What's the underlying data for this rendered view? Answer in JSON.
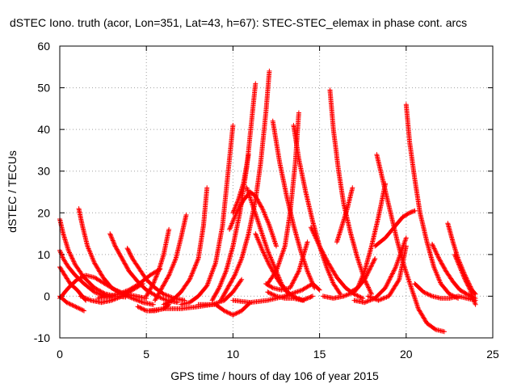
{
  "chart_data": {
    "type": "scatter",
    "title": "dSTEC Iono. truth (acor, Lon=351, Lat=43, h=67): STEC-STEC_elemax in phase cont. arcs",
    "xlabel": "GPS time / hours of day 106 of year 2015",
    "ylabel": "dSTEC  / TECUs",
    "xlim": [
      0,
      25
    ],
    "ylim": [
      -10,
      60
    ],
    "x_ticks": [
      0,
      5,
      10,
      15,
      20,
      25
    ],
    "y_ticks": [
      -10,
      0,
      10,
      20,
      30,
      40,
      50,
      60
    ],
    "grid": true,
    "marker": "plus",
    "series_color": "#ff0000",
    "arcs": [
      {
        "x": [
          0.0,
          0.4,
          0.9,
          1.4
        ],
        "y": [
          0.0,
          -1.5,
          -2.5,
          -3.5
        ]
      },
      {
        "x": [
          0.0,
          0.3,
          0.6,
          1.0,
          1.3,
          1.5
        ],
        "y": [
          7,
          5,
          3,
          1.5,
          0,
          -1
        ]
      },
      {
        "x": [
          0.0,
          0.2,
          0.5,
          0.9,
          1.4,
          2.0,
          2.5,
          3.0
        ],
        "y": [
          11,
          9,
          7,
          5,
          3,
          1,
          0.2,
          -0.3
        ]
      },
      {
        "x": [
          0.0,
          0.2,
          0.5,
          0.9,
          1.4,
          2.0,
          2.6,
          3.2,
          3.8
        ],
        "y": [
          18.5,
          15,
          11,
          7.5,
          4.5,
          2,
          0.6,
          0,
          -0.2
        ]
      },
      {
        "x": [
          0.0,
          0.5,
          1.0,
          1.5,
          2.0,
          2.6,
          3.2,
          3.8,
          4.4,
          5.0
        ],
        "y": [
          -0.5,
          2,
          4,
          5,
          4.5,
          3,
          1.5,
          0.5,
          0,
          -0.5
        ]
      },
      {
        "x": [
          1.1,
          1.3,
          1.6,
          2.0,
          2.5,
          3.0,
          3.6,
          4.2,
          4.8,
          5.4
        ],
        "y": [
          21,
          17,
          12,
          8,
          4.5,
          2,
          0.5,
          -0.5,
          -1.5,
          -2
        ]
      },
      {
        "x": [
          1.2,
          1.8,
          2.4,
          3.0,
          3.6,
          4.2,
          4.8
        ],
        "y": [
          0,
          -1,
          -1.5,
          -1,
          0,
          1.5,
          3
        ]
      },
      {
        "x": [
          2.9,
          3.2,
          3.6,
          4.0,
          4.5,
          5.0,
          5.6,
          6.2,
          6.8
        ],
        "y": [
          15,
          12,
          9,
          6,
          3.5,
          1.5,
          0,
          -1,
          -1.5
        ]
      },
      {
        "x": [
          3.9,
          4.2,
          4.6,
          5.0,
          5.5,
          6.0,
          6.6,
          7.2
        ],
        "y": [
          11.5,
          9,
          6.5,
          4,
          2,
          0.5,
          -0.5,
          -1
        ]
      },
      {
        "x": [
          2.2,
          2.8,
          3.4,
          4.0,
          4.6,
          5.2,
          5.8
        ],
        "y": [
          -0.5,
          0,
          0.5,
          1.5,
          3,
          5,
          6.5
        ]
      },
      {
        "x": [
          4.5,
          5.0,
          5.5,
          6.0,
          6.3
        ],
        "y": [
          -2.5,
          -3.5,
          -3.5,
          -3,
          -2
        ]
      },
      {
        "x": [
          5.0,
          5.4,
          5.7,
          6.0,
          6.3
        ],
        "y": [
          0,
          3,
          6,
          10,
          16
        ]
      },
      {
        "x": [
          5.5,
          5.9,
          6.3,
          6.7,
          7.0,
          7.3
        ],
        "y": [
          -1,
          2,
          5,
          9,
          14,
          19.5
        ]
      },
      {
        "x": [
          6.0,
          6.5,
          7.0,
          7.5,
          8.0,
          8.3,
          8.5
        ],
        "y": [
          -2,
          -1,
          1,
          4,
          9,
          17,
          26
        ]
      },
      {
        "x": [
          7.0,
          7.5,
          8.0,
          8.5,
          9.0,
          9.4,
          9.7,
          10.0
        ],
        "y": [
          -2,
          -1.5,
          0,
          2.5,
          8,
          17,
          29,
          41
        ]
      },
      {
        "x": [
          5.2,
          6.0,
          7.0,
          8.0,
          8.8,
          9.5,
          10.0,
          10.5
        ],
        "y": [
          -3.5,
          -3,
          -3,
          -2.5,
          -2,
          -1,
          1,
          4
        ]
      },
      {
        "x": [
          8.0,
          8.5,
          9.0,
          9.5,
          10.0,
          10.5,
          11.0
        ],
        "y": [
          -2,
          -2,
          -2,
          -3.5,
          -4.5,
          -3.5,
          -1.5
        ]
      },
      {
        "x": [
          8.8,
          9.2,
          9.6,
          10.0,
          10.4,
          10.8,
          11.1,
          11.3
        ],
        "y": [
          -1,
          2,
          6,
          12,
          20,
          31,
          43,
          51
        ]
      },
      {
        "x": [
          9.3,
          9.7,
          10.1,
          10.5,
          10.9,
          11.3,
          11.6,
          11.9,
          12.1
        ],
        "y": [
          -1,
          2,
          5,
          9,
          15,
          23,
          32,
          44,
          54
        ]
      },
      {
        "x": [
          9.8,
          10.2,
          10.6,
          11.0,
          11.3,
          11.7,
          12.1,
          12.5
        ],
        "y": [
          16,
          20,
          23,
          25,
          24,
          21,
          17,
          12
        ]
      },
      {
        "x": [
          10.0,
          10.3,
          10.6,
          10.9
        ],
        "y": [
          20,
          23,
          27,
          34
        ]
      },
      {
        "x": [
          10.8,
          11.2,
          11.6,
          12.0,
          12.4,
          12.8,
          13.2
        ],
        "y": [
          26,
          21,
          16,
          11,
          7,
          3,
          0.5
        ]
      },
      {
        "x": [
          11.3,
          11.7,
          12.1,
          12.5,
          12.9,
          13.3,
          13.7,
          14.1
        ],
        "y": [
          15,
          11,
          7.5,
          4.5,
          2,
          0.5,
          -0.5,
          -1
        ]
      },
      {
        "x": [
          10.0,
          11.0,
          12.0,
          13.0,
          14.0,
          14.6,
          15.0
        ],
        "y": [
          -1,
          -1.5,
          -1,
          0,
          1.5,
          3,
          1.5
        ]
      },
      {
        "x": [
          11.9,
          12.3,
          12.8,
          13.3,
          13.8,
          14.3
        ],
        "y": [
          3,
          2,
          1.5,
          2,
          6,
          13
        ]
      },
      {
        "x": [
          12.3,
          12.7,
          13.1,
          13.5,
          13.9,
          14.3,
          14.7
        ],
        "y": [
          42,
          32,
          24,
          17,
          11,
          6,
          2
        ]
      },
      {
        "x": [
          12.0,
          12.5,
          13.0,
          13.3,
          13.6,
          13.8
        ],
        "y": [
          3,
          6,
          12,
          20,
          32,
          44
        ]
      },
      {
        "x": [
          13.5,
          13.8,
          14.2,
          14.6,
          15.0,
          15.4,
          15.8,
          16.2
        ],
        "y": [
          41,
          33,
          25,
          18,
          12,
          7,
          3,
          0.5
        ]
      },
      {
        "x": [
          12.0,
          12.5,
          13.0,
          13.5,
          14.0,
          14.3,
          14.6
        ],
        "y": [
          1,
          0,
          -0.5,
          -0.5,
          -1,
          -0.5,
          0
        ]
      },
      {
        "x": [
          14.5,
          15.0,
          15.5,
          16.0,
          16.5,
          17.0,
          17.5
        ],
        "y": [
          16.5,
          12,
          8,
          4.5,
          2,
          0.5,
          -0.5
        ]
      },
      {
        "x": [
          15.6,
          15.8,
          16.1,
          16.4,
          16.8,
          17.2,
          17.6,
          18.0
        ],
        "y": [
          49.5,
          40,
          30,
          22,
          15,
          9,
          4,
          0.5
        ]
      },
      {
        "x": [
          16.0,
          16.3,
          16.6,
          16.9
        ],
        "y": [
          13,
          17,
          21,
          26
        ]
      },
      {
        "x": [
          15.2,
          15.8,
          16.4,
          17.0,
          17.6,
          18.2
        ],
        "y": [
          0,
          -0.5,
          0,
          1,
          4,
          9
        ]
      },
      {
        "x": [
          16.8,
          17.2,
          17.6,
          18.0,
          18.4,
          18.8
        ],
        "y": [
          1,
          2,
          6,
          12,
          19,
          27
        ]
      },
      {
        "x": [
          18.3,
          18.7,
          19.1,
          19.5,
          19.9,
          20.3,
          20.7,
          21.2,
          21.7,
          22.2
        ],
        "y": [
          34,
          27,
          20,
          13,
          7,
          2,
          -3,
          -6.5,
          -8,
          -8.5
        ]
      },
      {
        "x": [
          17.0,
          17.6,
          18.2,
          18.8,
          19.4,
          20.0
        ],
        "y": [
          -1,
          -1.5,
          -0.5,
          2,
          7,
          14
        ]
      },
      {
        "x": [
          17.8,
          18.4,
          19.0,
          19.6,
          20.0
        ],
        "y": [
          0,
          -1,
          0,
          4,
          12
        ]
      },
      {
        "x": [
          18.2,
          18.8,
          19.4,
          19.8,
          20.2,
          20.5
        ],
        "y": [
          12,
          14,
          17,
          19,
          20,
          20.5
        ]
      },
      {
        "x": [
          20.0,
          20.2,
          20.5,
          20.8,
          21.2,
          21.6,
          22.0,
          22.5,
          23.0
        ],
        "y": [
          46,
          37,
          28,
          20,
          13,
          7,
          3,
          0.5,
          -0.5
        ]
      },
      {
        "x": [
          20.5,
          21.0,
          21.5,
          22.0,
          22.5,
          23.0,
          23.5,
          24.0
        ],
        "y": [
          3,
          1,
          0,
          -0.5,
          -0.5,
          0,
          -0.5,
          -1
        ]
      },
      {
        "x": [
          21.5,
          21.9,
          22.3,
          22.7,
          23.1,
          23.5,
          24.0
        ],
        "y": [
          12.5,
          9,
          6,
          3.5,
          1.5,
          0.5,
          -0.5
        ]
      },
      {
        "x": [
          22.4,
          22.7,
          23.0,
          23.4,
          23.8,
          24.0
        ],
        "y": [
          17.5,
          13,
          9,
          5,
          1.5,
          0.5
        ]
      },
      {
        "x": [
          22.8,
          23.1,
          23.4,
          23.7,
          24.0
        ],
        "y": [
          10,
          7,
          4,
          1.5,
          -2
        ]
      }
    ]
  }
}
